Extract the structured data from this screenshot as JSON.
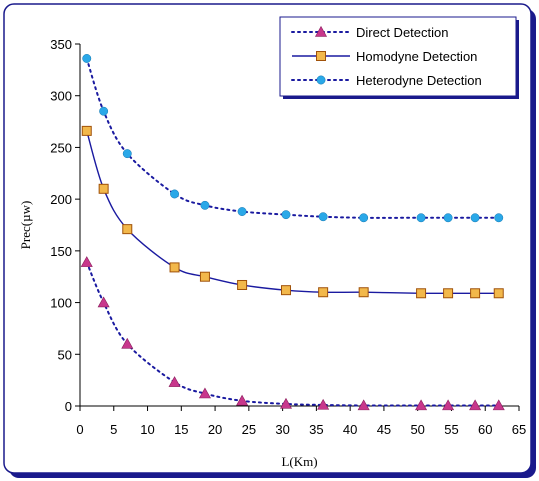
{
  "chart_data": {
    "type": "line",
    "xlabel": "L(Km)",
    "ylabel": "Prec(µw)",
    "xlim": [
      0,
      65
    ],
    "ylim": [
      0,
      350
    ],
    "x_ticks": [
      "0",
      "5",
      "10",
      "15",
      "20",
      "25",
      "30",
      "35",
      "40",
      "45",
      "50",
      "55",
      "60",
      "65"
    ],
    "y_ticks": [
      "0",
      "50",
      "100",
      "150",
      "200",
      "250",
      "300",
      "350"
    ],
    "grid": false,
    "legend_position": "top-right",
    "series": [
      {
        "name": "Direct Detection",
        "style": "dotted",
        "marker": "triangle",
        "color": "#1a1aa0",
        "marker_color": "#c8378c",
        "x": [
          1,
          3.5,
          7,
          14,
          18.5,
          24,
          30.5,
          36,
          42,
          50.5,
          54.5,
          58.5,
          62
        ],
        "y": [
          139,
          100,
          60,
          23,
          12,
          5,
          2,
          1,
          0.5,
          0.5,
          0.5,
          0.5,
          0.5
        ]
      },
      {
        "name": "Homodyne Detection",
        "style": "solid",
        "marker": "square",
        "color": "#1a1aa0",
        "marker_color": "#f2b84b",
        "x": [
          1,
          3.5,
          7,
          14,
          18.5,
          24,
          30.5,
          36,
          42,
          50.5,
          54.5,
          58.5,
          62
        ],
        "y": [
          266,
          210,
          171,
          134,
          125,
          117,
          112,
          110,
          110,
          109,
          109,
          109,
          109
        ]
      },
      {
        "name": "Heterodyne Detection",
        "style": "dotted",
        "marker": "circle",
        "color": "#1a1aa0",
        "marker_color": "#2aa8e8",
        "x": [
          1,
          3.5,
          7,
          14,
          18.5,
          24,
          30.5,
          36,
          42,
          50.5,
          54.5,
          58.5,
          62
        ],
        "y": [
          336,
          285,
          244,
          205,
          194,
          188,
          185,
          183,
          182,
          182,
          182,
          182,
          182
        ]
      }
    ]
  }
}
